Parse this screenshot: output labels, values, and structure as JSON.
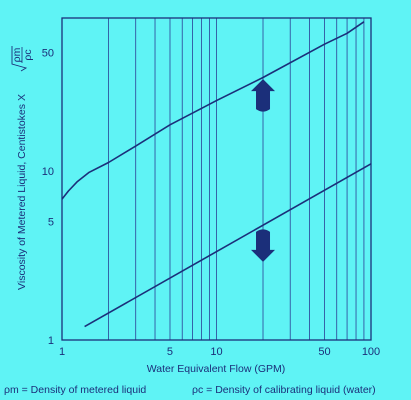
{
  "chart_data": {
    "type": "line",
    "x_scale": "log",
    "y_scale": "log",
    "xlim": [
      1,
      100
    ],
    "ylim": [
      1,
      80
    ],
    "xlabel": "Water Equivalent Flow (GPM)",
    "ylabel_prefix": "Viscosity of Metered Liquid, Centistokes X ",
    "ylabel_sqrt_num": "ρm",
    "ylabel_sqrt_den": "ρc",
    "x_ticks": [
      1,
      5,
      10,
      50,
      100
    ],
    "x_tick_labels": [
      "1",
      "5",
      "10",
      "50",
      "100"
    ],
    "y_ticks": [
      1,
      5,
      10,
      50
    ],
    "y_tick_labels": [
      "1",
      "5",
      "10",
      "50"
    ],
    "grid": "vertical",
    "series": [
      {
        "x": [
          1,
          1.1,
          1.25,
          1.5,
          2,
          3,
          5,
          10,
          20,
          50,
          70,
          90
        ],
        "y": [
          6.8,
          7.6,
          8.6,
          9.8,
          11.2,
          14,
          18.7,
          26,
          35.6,
          56,
          65,
          76
        ]
      },
      {
        "x": [
          1.4,
          100
        ],
        "y": [
          1.2,
          11
        ]
      }
    ],
    "annotations": [
      {
        "type": "arrow-up",
        "x": 20,
        "y": 28
      },
      {
        "type": "arrow-down",
        "x": 20,
        "y": 3.6
      }
    ]
  },
  "footer": {
    "left": "ρm = Density of metered liquid",
    "right": "ρc = Density of calibrating liquid (water)"
  },
  "colors": {
    "background": "#5ff3f5",
    "line": "#1b2f7a",
    "grid": "#2b3f96"
  }
}
